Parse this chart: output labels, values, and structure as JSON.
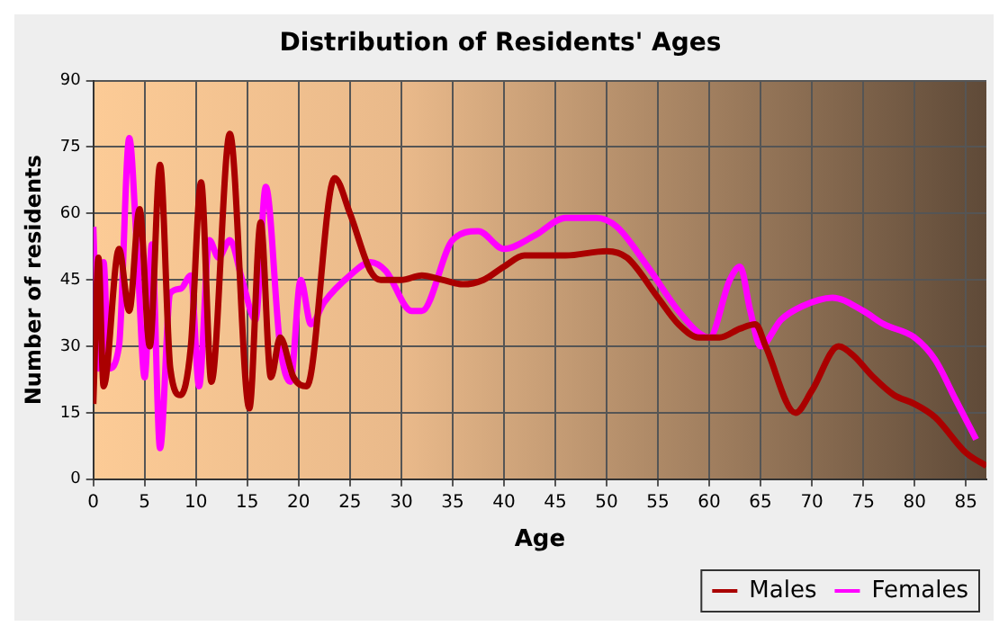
{
  "chart_data": {
    "type": "line",
    "title": "Distribution of Residents' Ages",
    "xlabel": "Age",
    "ylabel": "Number of residents",
    "xlim": [
      0,
      87
    ],
    "xticks": [
      0,
      5,
      10,
      15,
      20,
      25,
      30,
      35,
      40,
      45,
      50,
      55,
      60,
      65,
      70,
      75,
      80,
      85
    ],
    "ylim": [
      0,
      90
    ],
    "yticks": [
      0,
      15,
      30,
      45,
      60,
      75,
      90
    ],
    "grid": true,
    "legend": "bottom right",
    "marker": "none",
    "line_style": "solid",
    "series": [
      {
        "name": "Males",
        "color": "#aa0000",
        "x": [
          0,
          0.5,
          1,
          2.5,
          3.5,
          4.5,
          5.5,
          6.5,
          7.5,
          8.5,
          9.5,
          10.5,
          11.5,
          13.3,
          15.2,
          16.3,
          17.3,
          18.2,
          19.5,
          20.8,
          23.5,
          25,
          27,
          28,
          30,
          32,
          34,
          36,
          38,
          40,
          42,
          46,
          50,
          52,
          55,
          57,
          59,
          61,
          63,
          64.5,
          65.5,
          68.4,
          70,
          72.6,
          74,
          76,
          78,
          80,
          82,
          85,
          87
        ],
        "values": [
          17,
          50,
          21,
          52,
          38,
          61,
          30,
          71,
          25,
          19,
          30,
          67,
          22,
          78,
          16,
          58,
          23,
          32,
          23,
          21,
          68,
          60,
          47,
          45,
          45,
          46,
          45,
          44,
          45,
          48,
          50.5,
          50.5,
          51.5,
          50,
          41,
          35,
          32,
          32,
          34,
          35,
          30,
          15,
          20,
          30,
          28,
          23,
          19,
          17,
          14,
          6,
          3
        ]
      },
      {
        "name": "Females",
        "color": "#ff00ff",
        "x": [
          0,
          0.5,
          1,
          1.5,
          2.5,
          3.5,
          4.3,
          5,
          5.7,
          6.5,
          7.5,
          8.5,
          9.5,
          10.3,
          11.3,
          12.2,
          13.3,
          14.5,
          15.8,
          16.8,
          18.2,
          19.2,
          20.2,
          21.2,
          22.5,
          25,
          27,
          28.5,
          31,
          32,
          35,
          37.5,
          40,
          43,
          46,
          49,
          51,
          54,
          57,
          59,
          60,
          62,
          63,
          64,
          65,
          67,
          69,
          72,
          75,
          77,
          80,
          82,
          84,
          86
        ],
        "values": [
          57,
          25,
          49,
          25,
          30,
          77,
          50,
          23,
          53,
          7,
          42,
          43,
          46,
          21,
          54,
          50,
          54,
          45,
          36,
          66,
          30,
          22,
          45,
          35,
          40,
          46,
          49,
          47,
          38,
          38,
          54,
          56,
          52,
          55,
          59,
          59,
          57,
          48,
          38,
          33,
          32,
          45,
          48,
          38,
          30,
          36,
          39,
          41,
          38,
          35,
          32,
          27,
          18,
          9
        ]
      }
    ]
  }
}
